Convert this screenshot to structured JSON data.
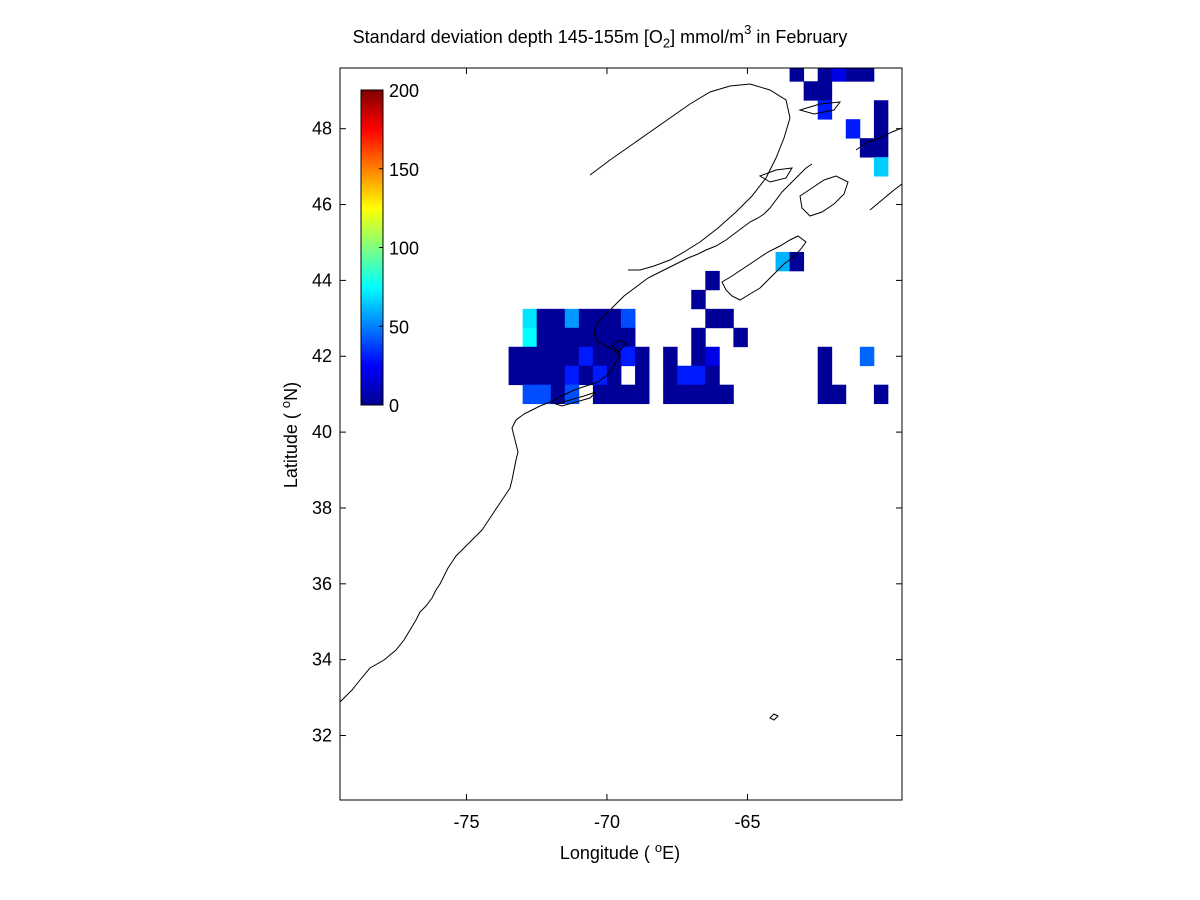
{
  "title": {
    "main": "Standard deviation depth 145-155m [O",
    "sub": "2",
    "mid": "] mmol/m",
    "sup": "3",
    "end": " in February"
  },
  "axes": {
    "xlabel_pre": "Longitude ( ",
    "xlabel_sup": "o",
    "xlabel_post": "E)",
    "ylabel_pre": "Latitude ( ",
    "ylabel_sup": "o",
    "ylabel_post": "N)"
  },
  "chart_data": {
    "type": "heatmap",
    "x_range": [
      -79.5,
      -59.5
    ],
    "y_range": [
      30.3,
      49.6
    ],
    "x_ticks": [
      -75,
      -70,
      -65
    ],
    "y_ticks": [
      32,
      34,
      36,
      38,
      40,
      42,
      44,
      46,
      48
    ],
    "cell_size_deg": 0.5,
    "colorbar": {
      "min": 0,
      "max": 200,
      "ticks": [
        0,
        50,
        100,
        150,
        200
      ],
      "colormap": "jet"
    },
    "grid": false,
    "legend_position": "top-left",
    "cells": [
      [
        -63.25,
        49.5,
        5
      ],
      [
        -62.25,
        49.5,
        5
      ],
      [
        -61.25,
        49.5,
        5
      ],
      [
        -60.75,
        49.5,
        5
      ],
      [
        -61.75,
        49.5,
        20
      ],
      [
        -62.75,
        49,
        5
      ],
      [
        -62.25,
        49,
        5
      ],
      [
        -60.25,
        48.5,
        5
      ],
      [
        -62.25,
        48.5,
        30
      ],
      [
        -61.25,
        48,
        30
      ],
      [
        -60.25,
        48,
        5
      ],
      [
        -60.75,
        47.5,
        5
      ],
      [
        -60.25,
        47.5,
        5
      ],
      [
        -60.25,
        47,
        65
      ],
      [
        -63.75,
        44.5,
        60
      ],
      [
        -63.25,
        44.5,
        5
      ],
      [
        -66.25,
        44,
        5
      ],
      [
        -66.75,
        43.5,
        5
      ],
      [
        -72.75,
        43,
        70
      ],
      [
        -72.25,
        43,
        5
      ],
      [
        -71.75,
        43,
        5
      ],
      [
        -71.25,
        43,
        55
      ],
      [
        -70.75,
        43,
        5
      ],
      [
        -70.25,
        43,
        5
      ],
      [
        -69.75,
        43,
        5
      ],
      [
        -69.25,
        43,
        40
      ],
      [
        -66.25,
        43,
        5
      ],
      [
        -65.75,
        43,
        5
      ],
      [
        -72.75,
        42.5,
        75
      ],
      [
        -72.25,
        42.5,
        5
      ],
      [
        -71.75,
        42.5,
        5
      ],
      [
        -71.25,
        42.5,
        5
      ],
      [
        -70.75,
        42.5,
        5
      ],
      [
        -70.25,
        42.5,
        5
      ],
      [
        -69.75,
        42.5,
        5
      ],
      [
        -69.25,
        42.5,
        5
      ],
      [
        -66.75,
        42.5,
        5
      ],
      [
        -65.25,
        42.5,
        5
      ],
      [
        -73.25,
        42,
        5
      ],
      [
        -72.75,
        42,
        5
      ],
      [
        -72.25,
        42,
        5
      ],
      [
        -71.75,
        42,
        5
      ],
      [
        -71.25,
        42,
        5
      ],
      [
        -70.75,
        42,
        30
      ],
      [
        -70.25,
        42,
        5
      ],
      [
        -69.75,
        42,
        5
      ],
      [
        -69.25,
        42,
        30
      ],
      [
        -68.75,
        42,
        5
      ],
      [
        -67.75,
        42,
        5
      ],
      [
        -66.75,
        42,
        5
      ],
      [
        -66.25,
        42,
        20
      ],
      [
        -62.25,
        42,
        5
      ],
      [
        -60.75,
        42,
        45
      ],
      [
        -73.25,
        41.5,
        5
      ],
      [
        -72.75,
        41.5,
        5
      ],
      [
        -72.25,
        41.5,
        5
      ],
      [
        -71.75,
        41.5,
        5
      ],
      [
        -71.25,
        41.5,
        30
      ],
      [
        -70.75,
        41.5,
        5
      ],
      [
        -70.25,
        41.5,
        30
      ],
      [
        -69.75,
        41.5,
        5
      ],
      [
        -68.75,
        41.5,
        5
      ],
      [
        -67.75,
        41.5,
        5
      ],
      [
        -67.25,
        41.5,
        30
      ],
      [
        -66.75,
        41.5,
        30
      ],
      [
        -66.25,
        41.5,
        5
      ],
      [
        -62.25,
        41.5,
        5
      ],
      [
        -72.75,
        41,
        40
      ],
      [
        -72.25,
        41,
        40
      ],
      [
        -71.75,
        41,
        5
      ],
      [
        -71.25,
        41,
        40
      ],
      [
        -70.25,
        41,
        5
      ],
      [
        -69.75,
        41,
        5
      ],
      [
        -69.25,
        41,
        5
      ],
      [
        -68.75,
        41,
        5
      ],
      [
        -67.75,
        41,
        5
      ],
      [
        -67.25,
        41,
        5
      ],
      [
        -66.75,
        41,
        5
      ],
      [
        -66.25,
        41,
        5
      ],
      [
        -65.75,
        41,
        5
      ],
      [
        -62.25,
        41,
        5
      ],
      [
        -61.75,
        41,
        5
      ],
      [
        -60.25,
        41,
        5
      ]
    ]
  }
}
